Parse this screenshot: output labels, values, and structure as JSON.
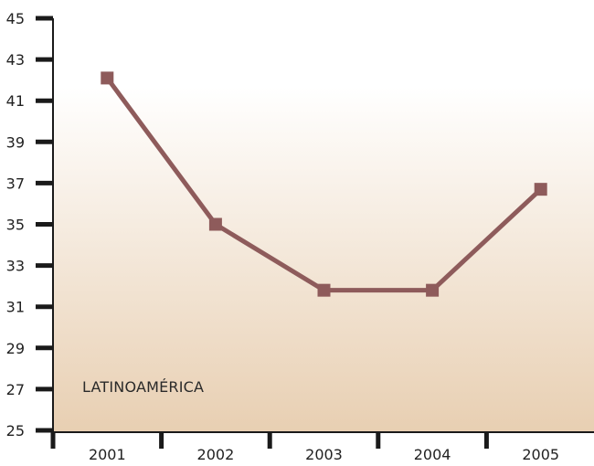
{
  "chart_data": {
    "type": "line",
    "categories": [
      "2001",
      "2002",
      "2003",
      "2004",
      "2005"
    ],
    "series": [
      {
        "values": [
          42.1,
          35.0,
          31.8,
          31.8,
          36.7
        ]
      }
    ],
    "ylim": [
      25,
      45
    ],
    "yticks": [
      25,
      27,
      29,
      31,
      33,
      35,
      37,
      39,
      41,
      43,
      45
    ],
    "annotation": "LATINOAMÉRICA",
    "title": "",
    "xlabel": "",
    "ylabel": "",
    "grid": false,
    "colors": {
      "line": "#8e5b5b",
      "marker": "#8e5b5b",
      "axis": "#1a1a1a",
      "bg_top": "#ffffff",
      "bg_bottom": "#e8cfb2"
    }
  }
}
